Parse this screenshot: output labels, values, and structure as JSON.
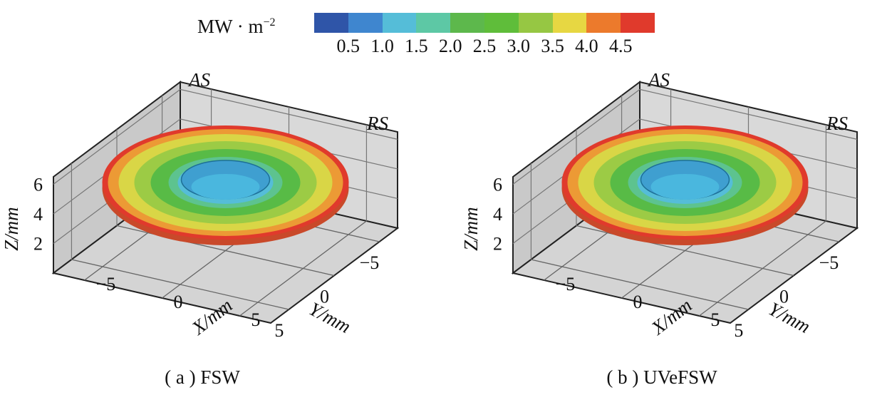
{
  "colorbar": {
    "unit_base": "MW · m",
    "unit_exp": "−2",
    "colors": [
      "#2f55a8",
      "#3f86cf",
      "#55bdd8",
      "#5dc8a5",
      "#5db84c",
      "#5fbd3a",
      "#96c743",
      "#e7d742",
      "#ec7a2c",
      "#e03a2c"
    ],
    "ticks": [
      "0.5",
      "1.0",
      "1.5",
      "2.0",
      "2.5",
      "3.0",
      "3.5",
      "4.0",
      "4.5"
    ]
  },
  "panels": [
    {
      "caption": "( a ) FSW",
      "label_as": "AS",
      "label_rs": "RS",
      "zlabel": "Z/mm",
      "ylabel": "Y/mm",
      "xlabel": "X/mm",
      "zticks": [
        "2",
        "4",
        "6"
      ],
      "yticks": [
        "−5",
        "0",
        "5"
      ],
      "xticks": [
        "−5",
        "0",
        "5"
      ]
    },
    {
      "caption": "( b ) UVeFSW",
      "label_as": "AS",
      "label_rs": "RS",
      "zlabel": "Z/mm",
      "ylabel": "Y/mm",
      "xlabel": "X/mm",
      "zticks": [
        "2",
        "4",
        "6"
      ],
      "yticks": [
        "−5",
        "0",
        "5"
      ],
      "xticks": [
        "−5",
        "0",
        "5"
      ]
    }
  ],
  "chart_data": [
    {
      "type": "other",
      "subtype": "3d-surface",
      "title": "( a ) FSW",
      "zlabel": "Z/mm",
      "ylabel": "Y/mm",
      "xlabel": "X/mm",
      "zticks": [
        2,
        4,
        6
      ],
      "yticks": [
        -5,
        0,
        5
      ],
      "xticks": [
        -5,
        0,
        5
      ],
      "colorbar_unit": "MW · m−2",
      "colorbar_ticks": [
        0.5,
        1.0,
        1.5,
        2.0,
        2.5,
        3.0,
        3.5,
        4.0,
        4.5
      ],
      "side_labels": [
        "AS",
        "RS"
      ]
    },
    {
      "type": "other",
      "subtype": "3d-surface",
      "title": "( b ) UVeFSW",
      "zlabel": "Z/mm",
      "ylabel": "Y/mm",
      "xlabel": "X/mm",
      "zticks": [
        2,
        4,
        6
      ],
      "yticks": [
        -5,
        0,
        5
      ],
      "xticks": [
        -5,
        0,
        5
      ],
      "colorbar_unit": "MW · m−2",
      "colorbar_ticks": [
        0.5,
        1.0,
        1.5,
        2.0,
        2.5,
        3.0,
        3.5,
        4.0,
        4.5
      ],
      "side_labels": [
        "AS",
        "RS"
      ]
    }
  ]
}
